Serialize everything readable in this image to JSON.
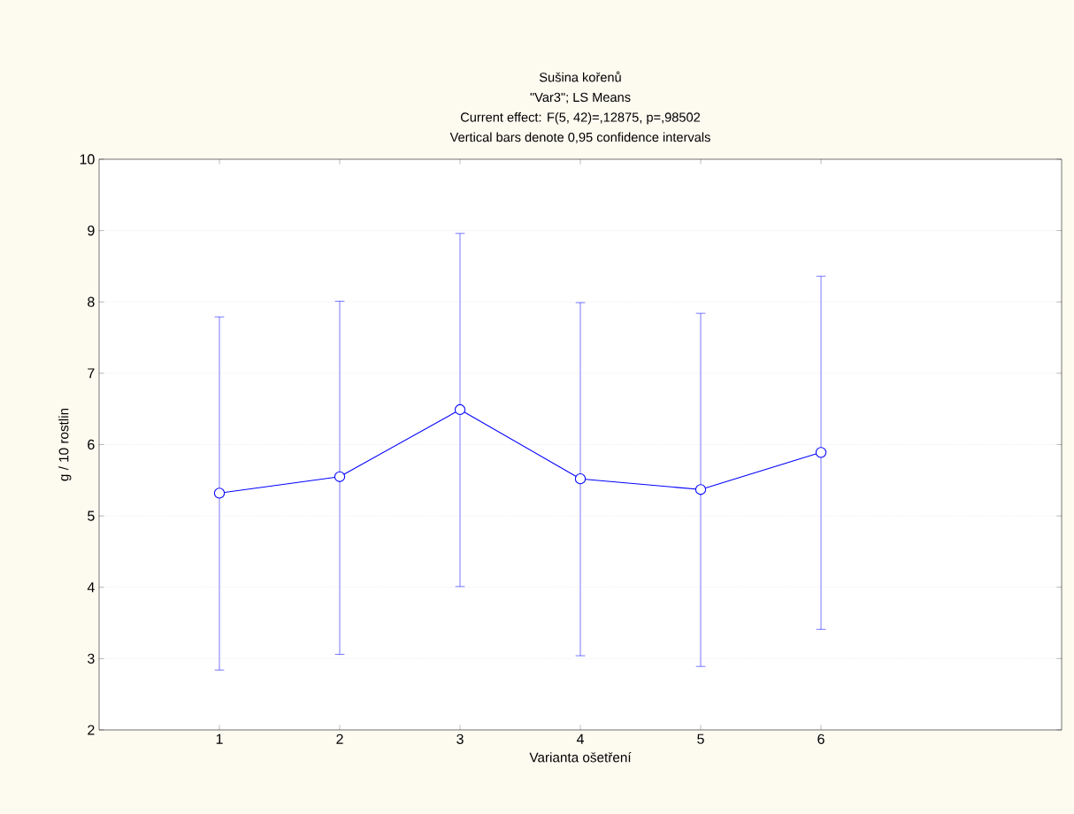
{
  "chart_data": {
    "type": "line",
    "title": "Sušina kořenů",
    "subtitle": "\"Var3\"; LS Means",
    "annotations": [
      "Current effect: F(5, 42)=,12875, p=,98502",
      "Vertical bars denote 0,95 confidence intervals"
    ],
    "xlabel": "Varianta ošetření",
    "ylabel": "g / 10 rostlin",
    "categories": [
      "1",
      "2",
      "3",
      "4",
      "5",
      "6"
    ],
    "values": [
      5.32,
      5.55,
      6.49,
      5.52,
      5.37,
      5.89
    ],
    "errors": [
      [
        2.84,
        7.79
      ],
      [
        3.06,
        8.01
      ],
      [
        4.01,
        8.96
      ],
      [
        3.04,
        7.99
      ],
      [
        2.89,
        7.84
      ],
      [
        3.41,
        8.36
      ]
    ],
    "color": "#0000ff",
    "marker": "circle",
    "line_style": "solid",
    "ylim": [
      2,
      10
    ],
    "yticks": [
      2,
      3,
      4,
      5,
      6,
      7,
      8,
      9,
      10
    ],
    "grid": "y"
  }
}
